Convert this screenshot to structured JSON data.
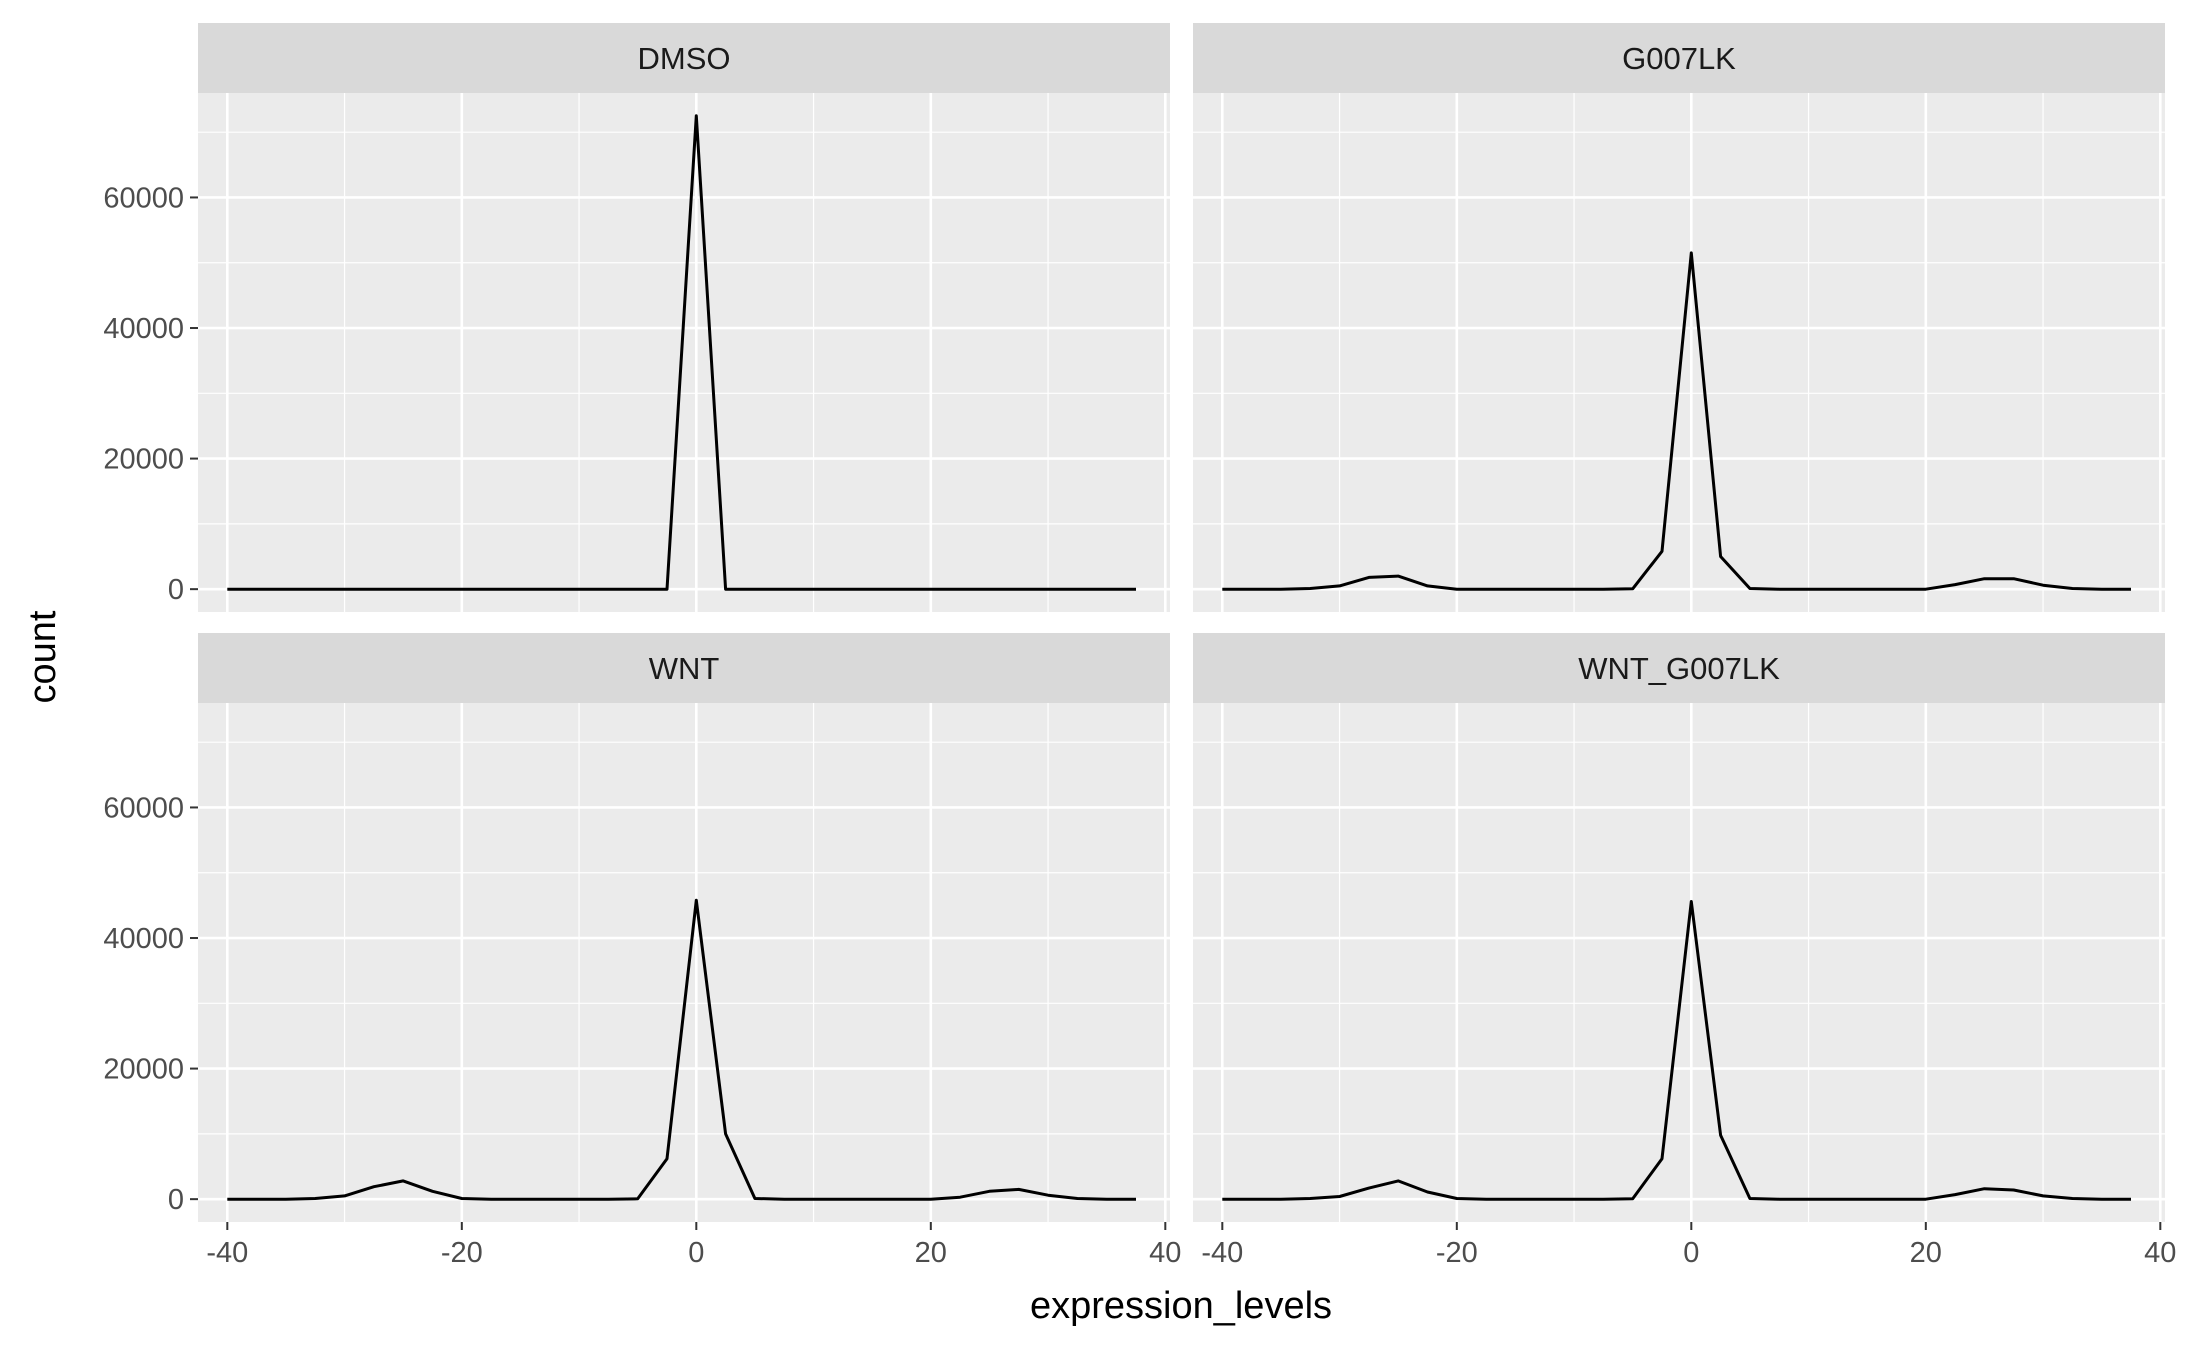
{
  "chart_data": {
    "type": "line",
    "layout": "facet_wrap",
    "xlabel": "expression_levels",
    "ylabel": "count",
    "xlim": [
      -42.5,
      40.4
    ],
    "ylim": [
      -3500,
      76000
    ],
    "x_ticks": [
      -40,
      -20,
      0,
      20,
      40
    ],
    "x_tick_labels": [
      "-40",
      "-20",
      "0",
      "20",
      "40"
    ],
    "y_ticks": [
      0,
      20000,
      40000,
      60000
    ],
    "y_tick_labels": [
      "0",
      "20000",
      "40000",
      "60000"
    ],
    "grid": true,
    "colors": {
      "panel_bg": "#ebebeb",
      "strip_bg": "#d9d9d9",
      "grid": "#ffffff",
      "line": "#000000"
    },
    "x": [
      -40,
      -37.5,
      -35,
      -32.5,
      -30,
      -27.5,
      -25,
      -22.5,
      -20,
      -17.5,
      -15,
      -12.5,
      -10,
      -7.5,
      -5,
      -2.5,
      0,
      2.5,
      5,
      7.5,
      10,
      12.5,
      15,
      17.5,
      20,
      22.5,
      25,
      27.5,
      30,
      32.5,
      35,
      37.5
    ],
    "panels": [
      {
        "name": "DMSO",
        "values": [
          0,
          0,
          0,
          0,
          0,
          0,
          0,
          0,
          0,
          0,
          0,
          0,
          0,
          0,
          0,
          0,
          72500,
          0,
          0,
          0,
          0,
          0,
          0,
          0,
          0,
          0,
          0,
          0,
          0,
          0,
          0,
          0
        ]
      },
      {
        "name": "G007LK",
        "values": [
          0,
          0,
          0,
          100,
          500,
          1800,
          2000,
          500,
          0,
          0,
          0,
          0,
          0,
          0,
          50,
          5800,
          51500,
          5000,
          100,
          0,
          0,
          0,
          0,
          0,
          0,
          700,
          1600,
          1600,
          600,
          100,
          0,
          0
        ]
      },
      {
        "name": "WNT",
        "values": [
          0,
          0,
          0,
          100,
          500,
          1900,
          2800,
          1200,
          100,
          0,
          0,
          0,
          0,
          0,
          50,
          6200,
          45800,
          10000,
          100,
          0,
          0,
          0,
          0,
          0,
          0,
          300,
          1200,
          1500,
          600,
          100,
          0,
          0
        ]
      },
      {
        "name": "WNT_G007LK",
        "values": [
          0,
          0,
          0,
          100,
          400,
          1700,
          2800,
          1100,
          100,
          0,
          0,
          0,
          0,
          0,
          50,
          6200,
          45600,
          9800,
          100,
          0,
          0,
          0,
          0,
          0,
          0,
          700,
          1600,
          1400,
          500,
          100,
          0,
          0
        ]
      }
    ]
  }
}
